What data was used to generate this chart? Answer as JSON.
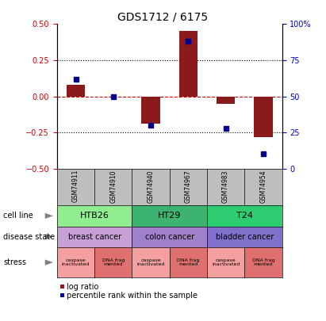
{
  "title": "GDS1712 / 6175",
  "samples": [
    "GSM74911",
    "GSM74910",
    "GSM74940",
    "GSM74967",
    "GSM74983",
    "GSM74954"
  ],
  "log_ratio": [
    0.08,
    0.0,
    -0.19,
    0.45,
    -0.05,
    -0.28
  ],
  "percentile_rank": [
    62,
    50,
    30,
    88,
    28,
    10
  ],
  "ylim_left": [
    -0.5,
    0.5
  ],
  "ylim_right": [
    0,
    100
  ],
  "yticks_left": [
    -0.5,
    -0.25,
    0,
    0.25,
    0.5
  ],
  "yticks_right": [
    0,
    25,
    50,
    75,
    100
  ],
  "dotted_lines": [
    -0.25,
    0.25
  ],
  "bar_color": "#8B1A1A",
  "marker_color": "#00008B",
  "cell_lines": [
    {
      "label": "HTB26",
      "cols": [
        0,
        1
      ],
      "color": "#90EE90"
    },
    {
      "label": "HT29",
      "cols": [
        2,
        3
      ],
      "color": "#3CB371"
    },
    {
      "label": "T24",
      "cols": [
        4,
        5
      ],
      "color": "#2ECC71"
    }
  ],
  "disease_states": [
    {
      "label": "breast cancer",
      "cols": [
        0,
        1
      ],
      "color": "#C8A0D8"
    },
    {
      "label": "colon cancer",
      "cols": [
        2,
        3
      ],
      "color": "#A080C8"
    },
    {
      "label": "bladder cancer",
      "cols": [
        4,
        5
      ],
      "color": "#8070CC"
    }
  ],
  "stress": [
    {
      "label": "caspase\ninactivated",
      "col": 0,
      "color": "#F4A0A0"
    },
    {
      "label": "DNA frag\nmented",
      "col": 1,
      "color": "#E07070"
    },
    {
      "label": "caspase\ninactivated",
      "col": 2,
      "color": "#F4A0A0"
    },
    {
      "label": "DNA frag\nmented",
      "col": 3,
      "color": "#E07070"
    },
    {
      "label": "caspase\ninactivated",
      "col": 4,
      "color": "#F4A0A0"
    },
    {
      "label": "DNA frag\nmented",
      "col": 5,
      "color": "#E07070"
    }
  ],
  "row_labels": [
    "cell line",
    "disease state",
    "stress"
  ],
  "legend_log_ratio": "log ratio",
  "legend_percentile": "percentile rank within the sample",
  "bg_color": "#FFFFFF",
  "left_yaxis_color": "#CC0000",
  "right_yaxis_color": "#0000CC",
  "sample_bg_color": "#BEBEBE"
}
